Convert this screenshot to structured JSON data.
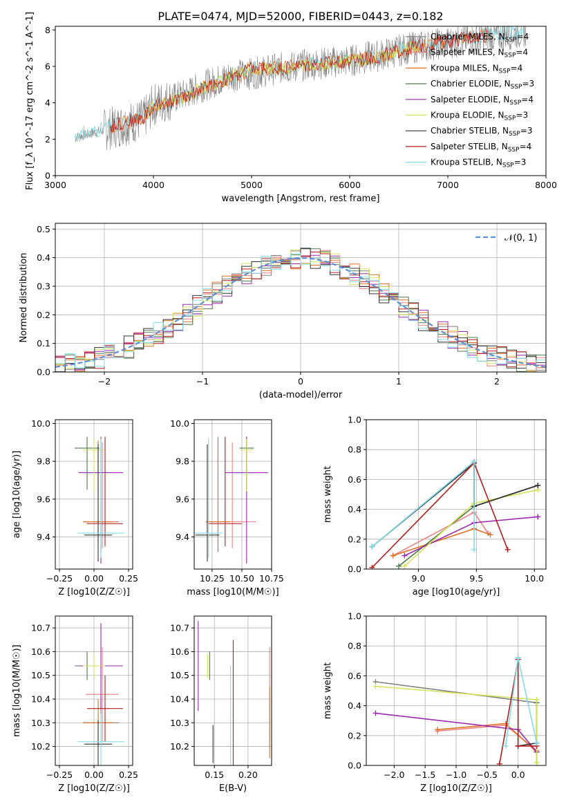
{
  "title": "PLATE=0474, MJD=52000, FIBERID=0443, z=0.182",
  "colors": [
    "#808080",
    "#f08080",
    "#e07020",
    "#4a7a4a",
    "#9c27b0",
    "#d4e157",
    "#303030",
    "#b71c1c",
    "#80deea"
  ],
  "chart_data": [
    {
      "id": "spectrum",
      "type": "line",
      "xlabel": "wavelength [Angstrom, rest frame]",
      "ylabel": "Flux [f_λ 10^-17 erg cm^-2 s^-1 A^-1]",
      "xlim": [
        3000,
        8000
      ],
      "ylim": [
        0,
        8.2
      ],
      "xticks": [
        3000,
        4000,
        5000,
        6000,
        7000,
        8000
      ],
      "yticks": [
        0,
        2,
        4,
        6,
        8
      ],
      "grid": false,
      "legend_position": "right",
      "observed_continuum": {
        "x": [
          3200,
          3500,
          3900,
          4000,
          4300,
          4500,
          4800,
          5000,
          5300,
          5600,
          6000,
          6300,
          6600,
          7000,
          7400,
          7800
        ],
        "y": [
          2.1,
          2.5,
          3.1,
          3.9,
          4.4,
          4.9,
          5.5,
          5.6,
          5.9,
          6.1,
          6.3,
          6.6,
          7.0,
          7.3,
          7.6,
          7.9
        ]
      },
      "model_continuum": {
        "x": [
          3200,
          3500,
          3900,
          4000,
          4300,
          4500,
          4800,
          5000,
          5300,
          5600,
          6000,
          6300,
          6600,
          7000,
          7400,
          7800
        ],
        "y": [
          2.2,
          2.6,
          3.2,
          3.8,
          4.3,
          4.8,
          5.4,
          5.9,
          5.9,
          6.1,
          6.3,
          6.5,
          7.0,
          7.4,
          7.7,
          7.9
        ]
      },
      "series": [
        {
          "name": "Chabrier MILES",
          "nssp": "4"
        },
        {
          "name": "Salpeter MILES",
          "nssp": "4"
        },
        {
          "name": "Kroupa MILES",
          "nssp": "4"
        },
        {
          "name": "Chabrier ELODIE",
          "nssp": "3"
        },
        {
          "name": "Salpeter ELODIE",
          "nssp": "4"
        },
        {
          "name": "Kroupa ELODIE",
          "nssp": "3"
        },
        {
          "name": "Chabrier STELIB",
          "nssp": "3"
        },
        {
          "name": "Salpeter STELIB",
          "nssp": "4"
        },
        {
          "name": "Kroupa STELIB",
          "nssp": "3"
        }
      ]
    },
    {
      "id": "residuals",
      "type": "line",
      "xlabel": "(data-model)/error",
      "ylabel": "Normed distribution",
      "xlim": [
        -2.5,
        2.5
      ],
      "ylim": [
        0,
        0.52
      ],
      "xticks": [
        -2,
        -1,
        0,
        1,
        2
      ],
      "yticks": [
        0.0,
        0.1,
        0.2,
        0.3,
        0.4,
        0.5
      ],
      "grid": true,
      "legend_position": "top-right",
      "gaussian_label": "𝒩(0, 1)",
      "bin_width": 0.1,
      "bin_start": -2.5
    },
    {
      "id": "age_vs_Z",
      "type": "scatter",
      "xlabel": "Z [log10(Z/Z☉)]",
      "ylabel": "age [log10(age/yr)]",
      "xlim": [
        -0.28,
        0.28
      ],
      "ylim": [
        9.23,
        10.02
      ],
      "xticks": [
        -0.25,
        0.0,
        0.25
      ],
      "yticks": [
        9.4,
        9.6,
        9.8,
        10.0
      ],
      "grid": true,
      "points": [
        {
          "x": 0.05,
          "y": 9.48,
          "xerr": 0.13,
          "yerr_lo": 0.16,
          "yerr_hi": 0.45
        },
        {
          "x": 0.06,
          "y": 9.48,
          "xerr": 0.12,
          "yerr_lo": 0.14,
          "yerr_hi": 0.42
        },
        {
          "x": 0.03,
          "y": 9.48,
          "xerr": 0.11,
          "yerr_lo": 0.12,
          "yerr_hi": 0.43
        },
        {
          "x": -0.05,
          "y": 9.87,
          "xerr": 0.09,
          "yerr_lo": 0.22,
          "yerr_hi": 0.06
        },
        {
          "x": 0.05,
          "y": 9.74,
          "xerr": 0.16,
          "yerr_lo": 0.48,
          "yerr_hi": 0.19
        },
        {
          "x": 0.0,
          "y": 9.86,
          "xerr": 0.08,
          "yerr_lo": 0.22,
          "yerr_hi": 0.06
        },
        {
          "x": 0.03,
          "y": 9.41,
          "xerr": 0.1,
          "yerr_lo": 0.14,
          "yerr_hi": 0.48
        },
        {
          "x": 0.08,
          "y": 9.47,
          "xerr": 0.13,
          "yerr_lo": 0.12,
          "yerr_hi": 0.46
        },
        {
          "x": 0.05,
          "y": 9.42,
          "xerr": 0.17,
          "yerr_lo": 0.13,
          "yerr_hi": 0.5
        }
      ]
    },
    {
      "id": "age_vs_mass",
      "type": "scatter",
      "xlabel": "mass [log10(M/M☉)]",
      "ylabel": "",
      "xlim": [
        10.1,
        10.75
      ],
      "ylim": [
        9.23,
        10.02
      ],
      "xticks": [
        10.25,
        10.5,
        10.75
      ],
      "yticks": [
        9.4,
        9.6,
        9.8,
        10.0
      ],
      "grid": true,
      "points": [
        {
          "x": 10.3,
          "y": 9.48,
          "xerr": 0.1,
          "yerr_lo": 0.16,
          "yerr_hi": 0.45
        },
        {
          "x": 10.42,
          "y": 9.48,
          "xerr": 0.2,
          "yerr_lo": 0.14,
          "yerr_hi": 0.42
        },
        {
          "x": 10.3,
          "y": 9.48,
          "xerr": 0.1,
          "yerr_lo": 0.12,
          "yerr_hi": 0.43
        },
        {
          "x": 10.54,
          "y": 9.87,
          "xerr": 0.06,
          "yerr_lo": 0.22,
          "yerr_hi": 0.06
        },
        {
          "x": 10.54,
          "y": 9.74,
          "xerr": 0.18,
          "yerr_lo": 0.48,
          "yerr_hi": 0.19
        },
        {
          "x": 10.54,
          "y": 9.86,
          "xerr": 0.05,
          "yerr_lo": 0.22,
          "yerr_hi": 0.06
        },
        {
          "x": 10.21,
          "y": 9.41,
          "xerr": 0.1,
          "yerr_lo": 0.14,
          "yerr_hi": 0.48
        },
        {
          "x": 10.36,
          "y": 9.47,
          "xerr": 0.14,
          "yerr_lo": 0.12,
          "yerr_hi": 0.46
        },
        {
          "x": 10.22,
          "y": 9.42,
          "xerr": 0.12,
          "yerr_lo": 0.13,
          "yerr_hi": 0.5
        }
      ]
    },
    {
      "id": "weight_vs_age",
      "type": "line",
      "xlabel": "age [log10(age/yr)]",
      "ylabel": "mass weight",
      "xlim": [
        8.55,
        10.1
      ],
      "ylim": [
        0,
        1
      ],
      "xticks": [
        9.0,
        9.5,
        10.0
      ],
      "yticks": [
        0.0,
        0.2,
        0.4,
        0.6,
        0.8,
        1.0
      ],
      "grid": true,
      "series": [
        {
          "x": [
            8.6,
            9.48,
            9.48,
            10.03
          ],
          "y": [
            0.15,
            0.72,
            0.42,
            0.56
          ]
        },
        {
          "x": [
            8.78,
            9.48,
            9.6
          ],
          "y": [
            0.09,
            0.38,
            0.24
          ]
        },
        {
          "x": [
            8.78,
            9.48,
            9.62
          ],
          "y": [
            0.09,
            0.27,
            0.23
          ]
        },
        {
          "x": [
            8.83,
            9.48,
            10.03
          ],
          "y": [
            0.02,
            0.42,
            0.56
          ]
        },
        {
          "x": [
            8.88,
            9.48,
            10.03
          ],
          "y": [
            0.09,
            0.31,
            0.35
          ]
        },
        {
          "x": [
            8.88,
            9.48,
            10.03
          ],
          "y": [
            0.02,
            0.44,
            0.53
          ]
        },
        {
          "x": [
            8.6,
            9.48,
            9.48,
            10.03
          ],
          "y": [
            0.15,
            0.71,
            0.42,
            0.56
          ]
        },
        {
          "x": [
            8.6,
            9.48,
            9.77
          ],
          "y": [
            0.01,
            0.71,
            0.13
          ]
        },
        {
          "x": [
            8.6,
            9.48,
            9.48
          ],
          "y": [
            0.15,
            0.72,
            0.13
          ]
        }
      ]
    },
    {
      "id": "mass_vs_Z",
      "type": "scatter",
      "xlabel": "Z [log10(Z/Z☉)]",
      "ylabel": "mass [log10(M/M☉)]",
      "xlim": [
        -0.28,
        0.28
      ],
      "ylim": [
        10.12,
        10.75
      ],
      "xticks": [
        -0.25,
        0.0,
        0.25
      ],
      "yticks": [
        10.2,
        10.3,
        10.4,
        10.5,
        10.6,
        10.7
      ],
      "grid": true,
      "points": [
        {
          "x": 0.05,
          "y": 10.3,
          "xerr": 0.13,
          "yerr": 0.1
        },
        {
          "x": 0.06,
          "y": 10.42,
          "xerr": 0.12,
          "yerr": 0.2
        },
        {
          "x": 0.03,
          "y": 10.3,
          "xerr": 0.11,
          "yerr": 0.1
        },
        {
          "x": -0.05,
          "y": 10.54,
          "xerr": 0.09,
          "yerr": 0.06
        },
        {
          "x": 0.05,
          "y": 10.54,
          "xerr": 0.16,
          "yerr": 0.18
        },
        {
          "x": 0.0,
          "y": 10.54,
          "xerr": 0.08,
          "yerr": 0.05
        },
        {
          "x": 0.03,
          "y": 10.21,
          "xerr": 0.1,
          "yerr": 0.1
        },
        {
          "x": 0.08,
          "y": 10.36,
          "xerr": 0.13,
          "yerr": 0.14
        },
        {
          "x": 0.05,
          "y": 10.22,
          "xerr": 0.17,
          "yerr": 0.12
        }
      ]
    },
    {
      "id": "mass_vs_ebv",
      "type": "scatter",
      "xlabel": "E(B-V)",
      "ylabel": "",
      "xlim": [
        0.12,
        0.235
      ],
      "ylim": [
        10.12,
        10.75
      ],
      "xticks": [
        0.15,
        0.2
      ],
      "yticks": [
        10.2,
        10.3,
        10.4,
        10.5,
        10.6,
        10.7
      ],
      "grid": true,
      "points": [
        {
          "x": 0.232,
          "y": 10.3,
          "yerr": 0.1
        },
        {
          "x": 0.232,
          "y": 10.42,
          "yerr": 0.2
        },
        {
          "x": 0.232,
          "y": 10.3,
          "yerr": 0.15
        },
        {
          "x": 0.143,
          "y": 10.54,
          "yerr": 0.06
        },
        {
          "x": 0.126,
          "y": 10.54,
          "yerr": 0.19
        },
        {
          "x": 0.14,
          "y": 10.54,
          "yerr": 0.05
        },
        {
          "x": 0.148,
          "y": 10.21,
          "yerr": 0.08
        },
        {
          "x": 0.178,
          "y": 10.36,
          "yerr": 0.29
        },
        {
          "x": 0.174,
          "y": 10.22,
          "yerr": 0.32
        }
      ]
    },
    {
      "id": "weight_vs_Z",
      "type": "line",
      "xlabel": "Z [log10(Z/Z☉)]",
      "ylabel": "mass weight",
      "xlim": [
        -2.45,
        0.45
      ],
      "ylim": [
        0,
        1
      ],
      "xticks": [
        -2.0,
        -1.5,
        -1.0,
        -0.5,
        0.0
      ],
      "yticks": [
        0.0,
        0.2,
        0.4,
        0.6,
        0.8,
        1.0
      ],
      "grid": true,
      "series": [
        {
          "x": [
            -2.3,
            0.3,
            0.3
          ],
          "y": [
            0.56,
            0.42,
            0.15
          ]
        },
        {
          "x": [
            -1.3,
            -0.2,
            0.3
          ],
          "y": [
            0.23,
            0.27,
            0.1
          ]
        },
        {
          "x": [
            -1.3,
            -0.2,
            0.3
          ],
          "y": [
            0.24,
            0.28,
            0.09
          ]
        },
        {
          "x": [
            0.3,
            0.3
          ],
          "y": [
            0.42,
            0.02
          ]
        },
        {
          "x": [
            -2.3,
            0.0,
            0.3
          ],
          "y": [
            0.35,
            0.24,
            0.09
          ]
        },
        {
          "x": [
            -2.3,
            0.3,
            0.3
          ],
          "y": [
            0.53,
            0.44,
            0.02
          ]
        },
        {
          "x": [
            0.0,
            0.0,
            0.3
          ],
          "y": [
            0.72,
            0.13,
            0.15
          ]
        },
        {
          "x": [
            -0.3,
            0.0,
            0.0,
            0.3
          ],
          "y": [
            0.01,
            0.71,
            0.13,
            0.13
          ]
        },
        {
          "x": [
            -0.2,
            0.0,
            0.3
          ],
          "y": [
            0.13,
            0.72,
            0.15
          ]
        }
      ]
    }
  ]
}
